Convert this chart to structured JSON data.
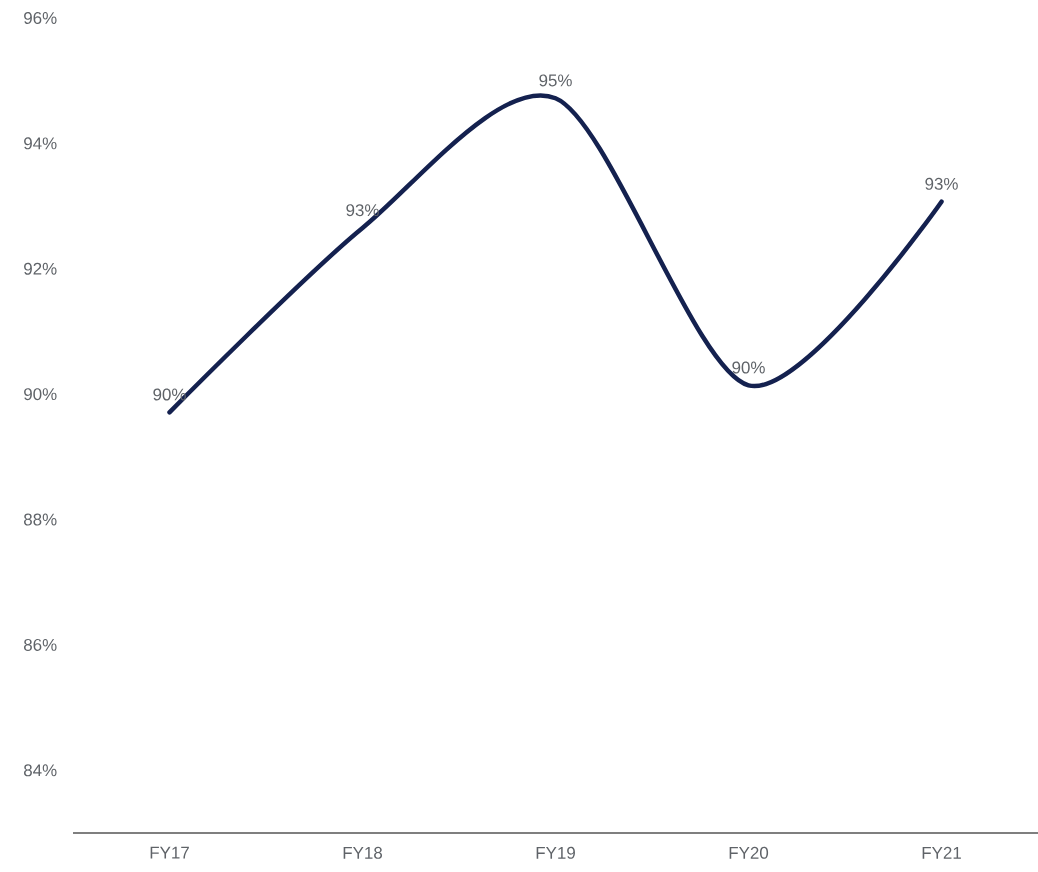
{
  "chart_data": {
    "type": "line",
    "categories": [
      "FY17",
      "FY18",
      "FY19",
      "FY20",
      "FY21"
    ],
    "series": [
      {
        "color": "#14214f",
        "values": [
          89.71,
          92.65,
          94.72,
          90.14,
          93.07
        ],
        "value_labels": [
          "90%",
          "93%",
          "95%",
          "90%",
          "93%"
        ]
      }
    ],
    "ylim": [
      83,
      96
    ],
    "yticks": [
      {
        "value": 84,
        "label": "84%"
      },
      {
        "value": 86,
        "label": "86%"
      },
      {
        "value": 88,
        "label": "88%"
      },
      {
        "value": 90,
        "label": "90%"
      },
      {
        "value": 92,
        "label": "92%"
      },
      {
        "value": 94,
        "label": "94%"
      },
      {
        "value": 96,
        "label": "96%"
      }
    ],
    "grid": false,
    "line_style": "solid"
  }
}
